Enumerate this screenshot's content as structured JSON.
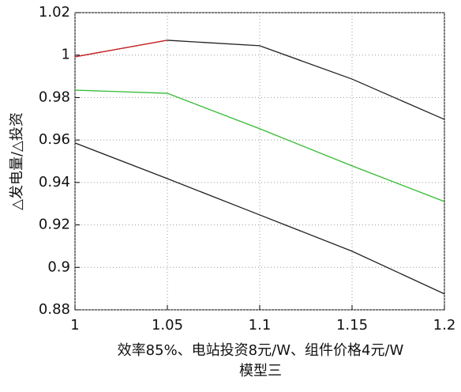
{
  "chart_data": {
    "type": "line",
    "x": [
      1,
      1.05,
      1.1,
      1.15,
      1.2
    ],
    "series": [
      {
        "color": "#222222",
        "values": [
          0.9992,
          1.007,
          1.0044,
          0.9887,
          0.9697
        ]
      },
      {
        "color": "#d62020",
        "values": [
          0.9992,
          1.007,
          null,
          null,
          null
        ]
      },
      {
        "color": "#33bb33",
        "values": [
          0.9835,
          0.982,
          0.9653,
          0.9478,
          0.931
        ]
      },
      {
        "color": "#222222",
        "values": [
          0.9586,
          0.9418,
          0.9247,
          0.9076,
          0.8875
        ]
      }
    ],
    "xlim": [
      1,
      1.2
    ],
    "xticks": [
      1,
      1.05,
      1.1,
      1.15,
      1.2
    ],
    "ylim": [
      0.88,
      1.02
    ],
    "yticks": [
      0.88,
      0.9,
      0.92,
      0.94,
      0.96,
      0.98,
      1,
      1.02
    ],
    "grid": true,
    "xlabel": [
      "效率85%、电站投资8元/W、组件价格4元/W",
      "模型三"
    ],
    "ylabel": "△发电量/△投资"
  }
}
